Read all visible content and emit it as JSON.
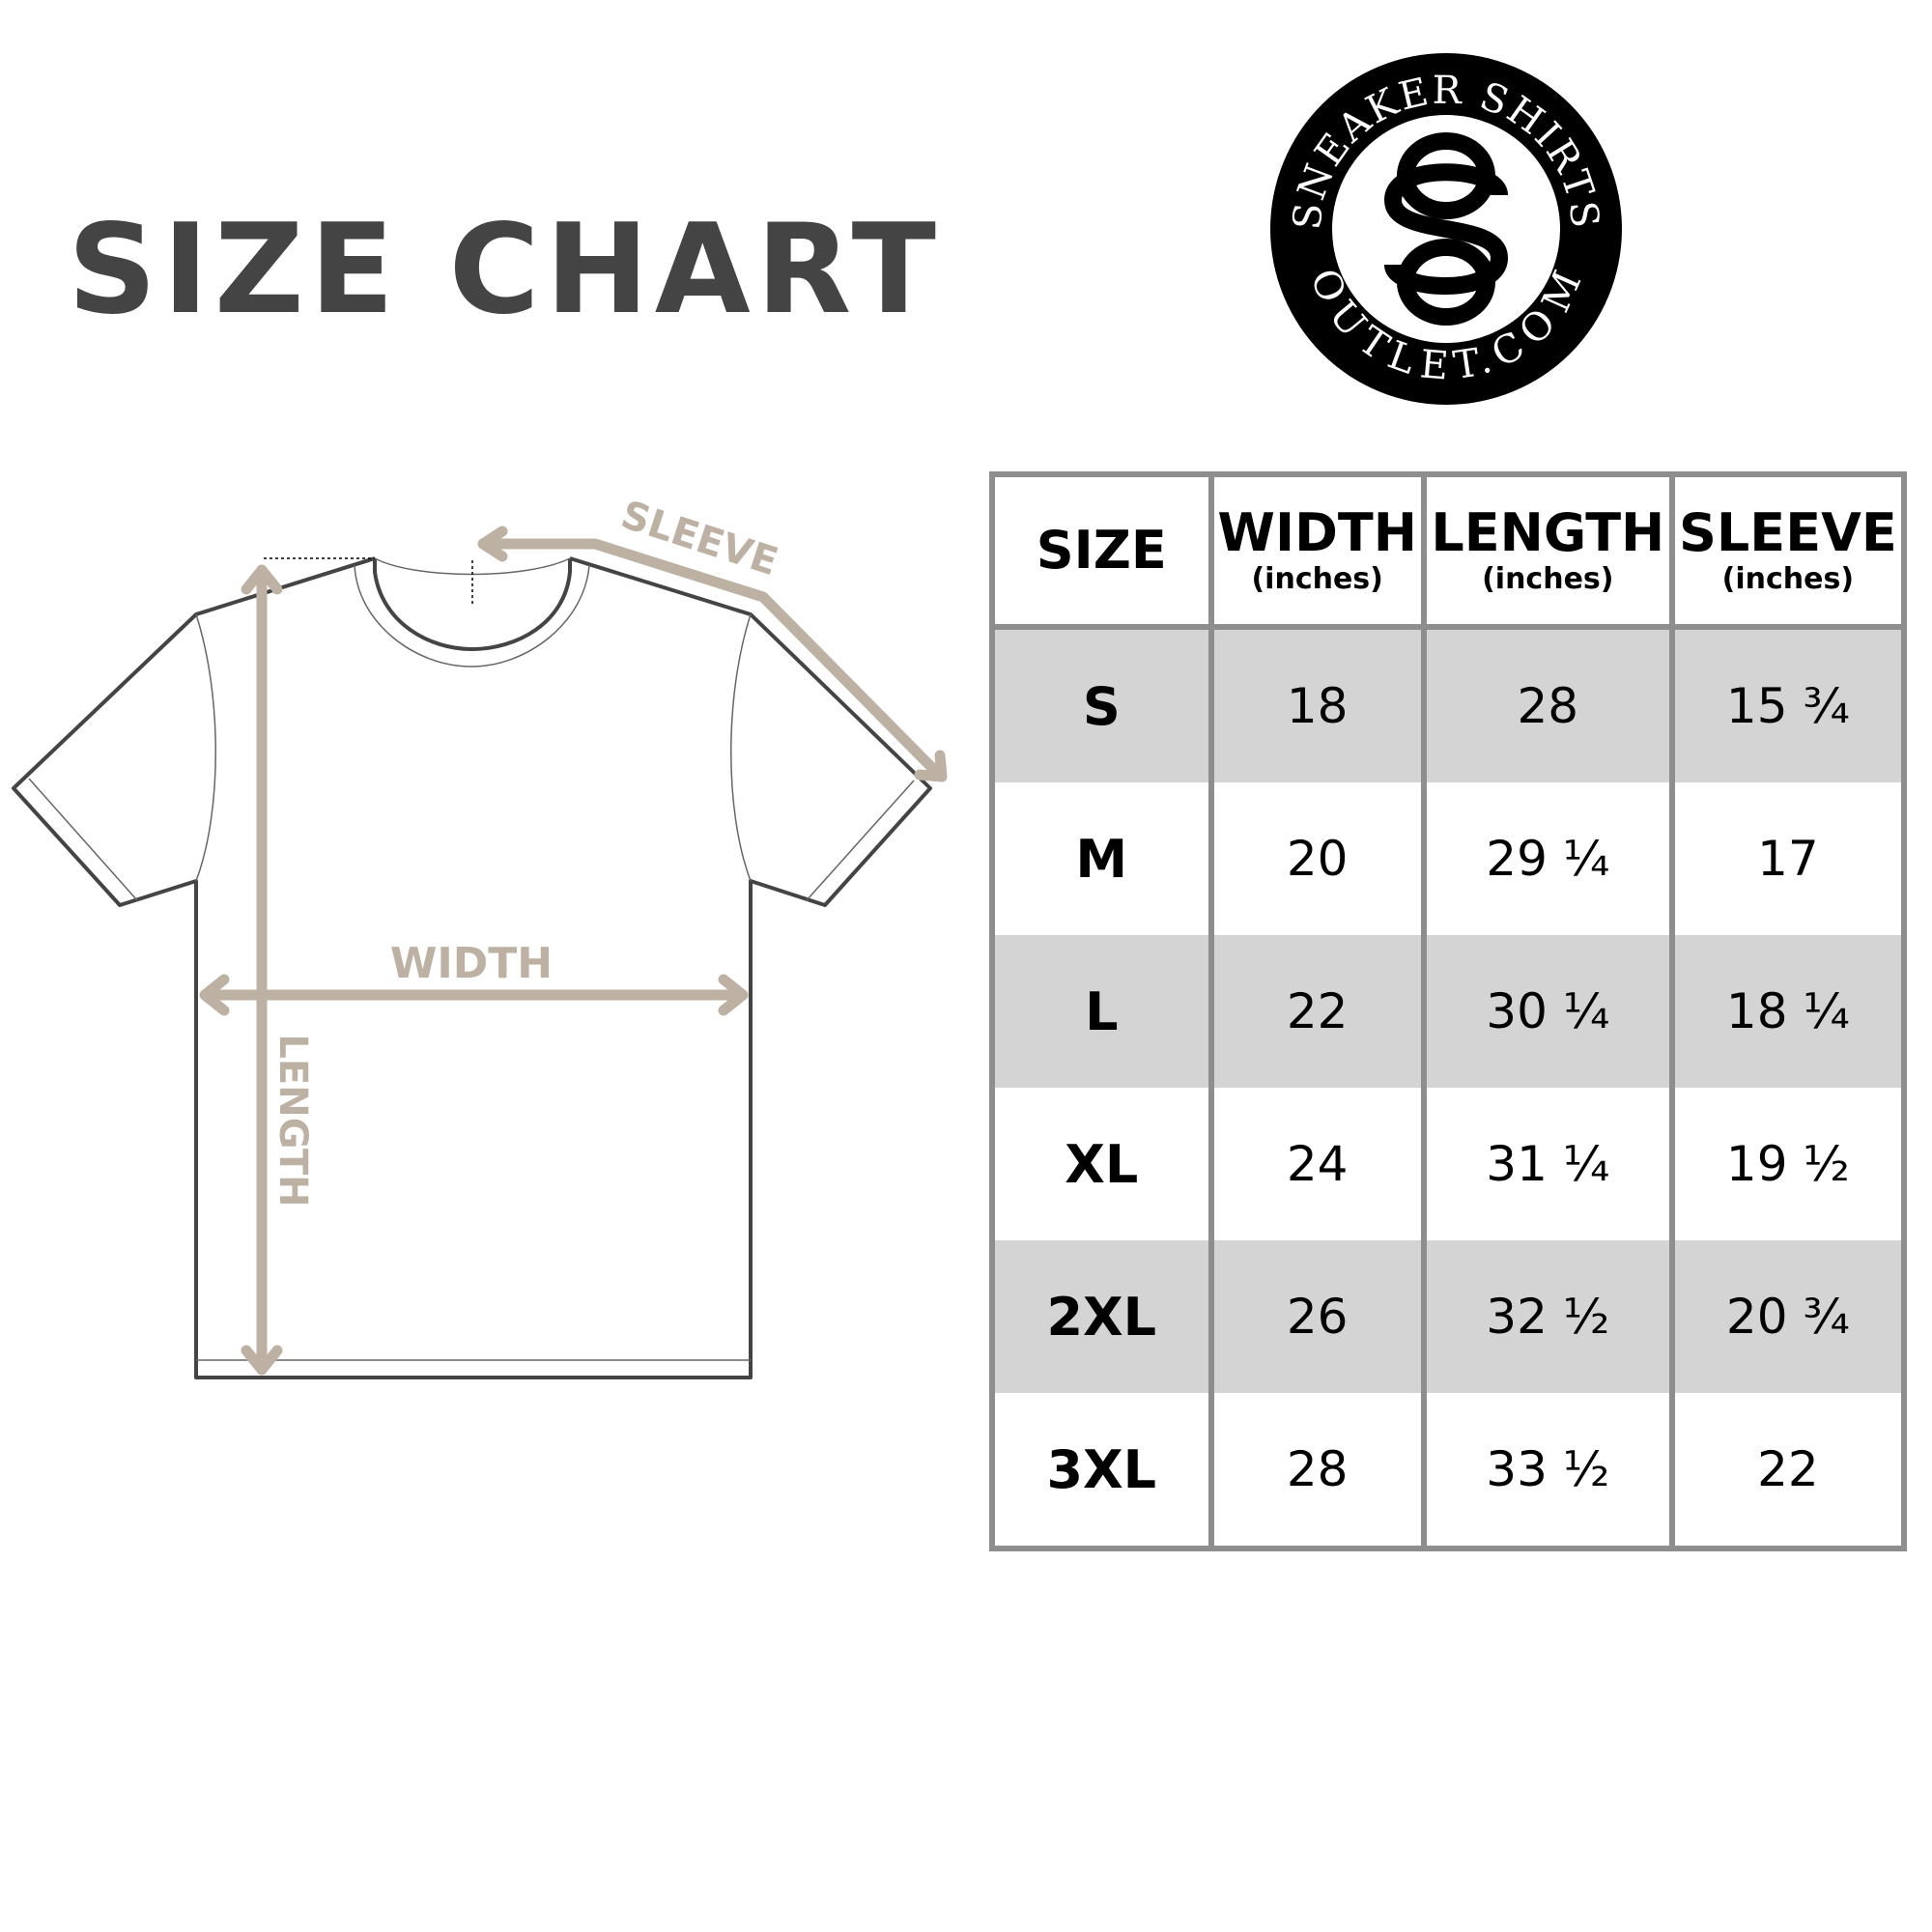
{
  "title": "SIZE CHART",
  "logo": {
    "top_text": "SNEAKER SHIRTS",
    "bottom_text": "OUTLET.COM",
    "monogram": "SO"
  },
  "diagram": {
    "sleeve_label": "SLEEVE",
    "width_label": "WIDTH",
    "length_label": "LENGTH",
    "arrow_color": "#bcb1a3"
  },
  "table": {
    "headers": [
      {
        "label": "SIZE",
        "unit": ""
      },
      {
        "label": "WIDTH",
        "unit": "(inches)"
      },
      {
        "label": "LENGTH",
        "unit": "(inches)"
      },
      {
        "label": "SLEEVE",
        "unit": "(inches)"
      }
    ],
    "rows": [
      [
        "S",
        "18",
        "28",
        "15 ¾"
      ],
      [
        "M",
        "20",
        "29 ¼",
        "17"
      ],
      [
        "L",
        "22",
        "30 ¼",
        "18 ¼"
      ],
      [
        "XL",
        "24",
        "31 ¼",
        "19 ½"
      ],
      [
        "2XL",
        "26",
        "32 ½",
        "20 ¾"
      ],
      [
        "3XL",
        "28",
        "33 ½",
        "22"
      ]
    ],
    "shade_color": "#d4d4d4",
    "border_color": "#8e8e8e"
  }
}
